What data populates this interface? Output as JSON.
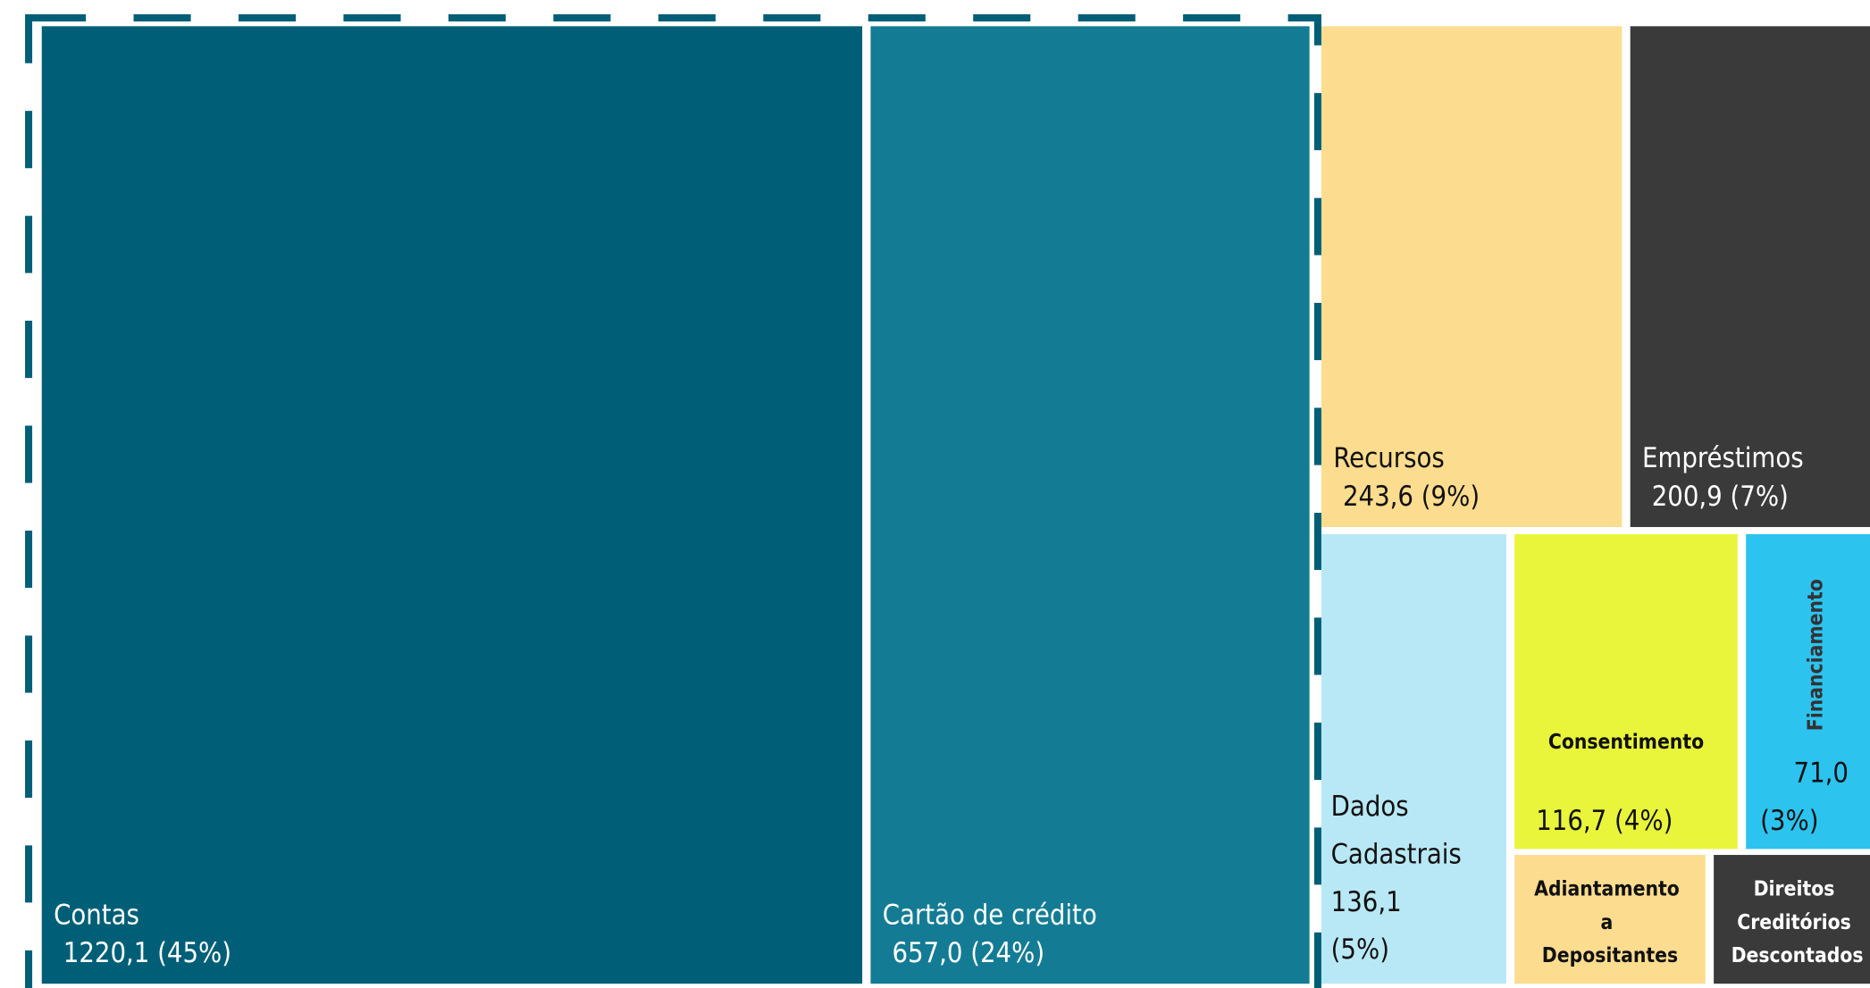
{
  "chart_data": {
    "type": "treemap",
    "categories": [
      "Contas",
      "Cartão de crédito",
      "Recursos",
      "Empréstimos",
      "Dados Cadastrais",
      "Consentimento",
      "Financiamento",
      "Adiantamento a Depositantes",
      "Direitos Creditórios Descontados"
    ],
    "values": [
      1220.1,
      657.0,
      243.6,
      200.9,
      136.1,
      116.7,
      71.0,
      38,
      36
    ],
    "value_labels": [
      "1220,1 (45%)",
      "657,0 (24%)",
      "243,6 (9%)",
      "200,9 (7%)",
      "136,1 (5%)",
      "116,7 (4%)",
      "71,0 (3%)",
      null,
      null
    ],
    "colors": [
      "#005f77",
      "#137c94",
      "#fcdc8e",
      "#3a3a3a",
      "#b8e8f5",
      "#e9f53a",
      "#2cc3ef",
      "#fcdc8e",
      "#3a3a3a"
    ]
  }
}
